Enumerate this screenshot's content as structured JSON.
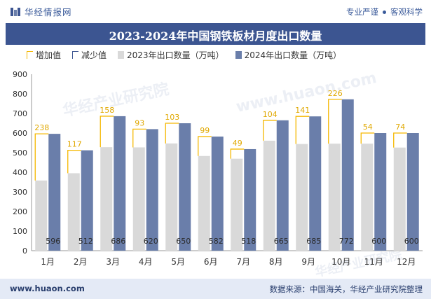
{
  "header": {
    "brand": "华经情报网",
    "tagline_1": "专业严谨",
    "tagline_2": "客观科学"
  },
  "footer": {
    "website": "www.huaon.com",
    "source": "数据来源：中国海关，华经产业研究院整理"
  },
  "watermark": {
    "text": "华经产业研究院",
    "url": "www.huaon.com"
  },
  "colors": {
    "title_bg": "#3c5591",
    "bar_2023": "#d9d9d9",
    "bar_2024": "#6a7eaa",
    "increase": "#f5b800",
    "decrease": "#3c5591"
  },
  "chart_data": {
    "type": "bar",
    "title": "2023-2024年中国钢铁板材月度出口数量",
    "categories": [
      "1月",
      "2月",
      "3月",
      "4月",
      "5月",
      "6月",
      "7月",
      "8月",
      "9月",
      "10月",
      "11月",
      "12月"
    ],
    "series": [
      {
        "name": "2023年出口数量（万吨）",
        "values": [
          358,
          395,
          528,
          527,
          547,
          483,
          469,
          561,
          544,
          546,
          546,
          526
        ]
      },
      {
        "name": "2024年出口数量（万吨）",
        "values": [
          596,
          512,
          686,
          620,
          650,
          582,
          518,
          665,
          685,
          772,
          600,
          600
        ]
      }
    ],
    "difference": {
      "increase_label": "增加值",
      "decrease_label": "减少值",
      "values": [
        238,
        117,
        158,
        93,
        103,
        99,
        49,
        104,
        141,
        226,
        54,
        74
      ]
    },
    "ylim": [
      0,
      900
    ],
    "yticks": [
      0,
      100,
      200,
      300,
      400,
      500,
      600,
      700,
      800,
      900
    ],
    "grid": false,
    "legend_position": "top"
  }
}
